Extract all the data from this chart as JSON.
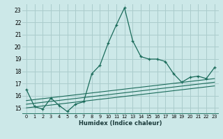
{
  "xlabel": "Humidex (Indice chaleur)",
  "bg_color": "#cce8e8",
  "grid_color": "#aacccc",
  "line_color": "#1a6b5a",
  "xlim": [
    -0.5,
    23.5
  ],
  "ylim": [
    14.5,
    23.5
  ],
  "yticks": [
    15,
    16,
    17,
    18,
    19,
    20,
    21,
    22,
    23
  ],
  "xticks": [
    0,
    1,
    2,
    3,
    4,
    5,
    6,
    7,
    8,
    9,
    10,
    11,
    12,
    13,
    14,
    15,
    16,
    17,
    18,
    19,
    20,
    21,
    22,
    23
  ],
  "series1_x": [
    0,
    1,
    2,
    3,
    4,
    5,
    6,
    7,
    8,
    9,
    10,
    11,
    12,
    13,
    14,
    15,
    16,
    17,
    18,
    19,
    20,
    21,
    22,
    23
  ],
  "series1_y": [
    16.5,
    15.1,
    14.9,
    15.8,
    15.2,
    14.7,
    15.3,
    15.5,
    17.8,
    18.5,
    20.3,
    21.8,
    23.2,
    20.5,
    19.2,
    19.0,
    19.0,
    18.8,
    17.8,
    17.1,
    17.5,
    17.6,
    17.4,
    18.3
  ],
  "trend1_x": [
    0,
    23
  ],
  "trend1_y": [
    15.0,
    16.8
  ],
  "trend2_x": [
    0,
    23
  ],
  "trend2_y": [
    15.3,
    17.1
  ],
  "trend3_x": [
    0,
    23
  ],
  "trend3_y": [
    15.6,
    17.4
  ]
}
